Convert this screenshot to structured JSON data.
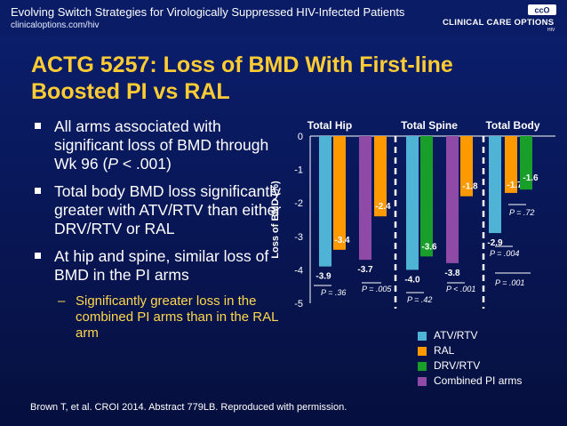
{
  "header": {
    "title": "Evolving Switch Strategies for Virologically Suppressed HIV-Infected Patients",
    "url": "clinicaloptions.com/hiv",
    "logo_text": "CLINICAL CARE OPTIONS",
    "logo_sub": "HIV",
    "logo_mark": "ccO"
  },
  "slide": {
    "title_line1": "ACTG 5257: Loss of BMD With First-line",
    "title_line2": "Boosted PI vs RAL"
  },
  "bullets": [
    {
      "pre": "All arms associated with significant loss of BMD through Wk 96 (",
      "em": "P",
      "post": " < .001)"
    },
    {
      "pre": "Total body BMD loss significantly greater with ATV/RTV than either DRV/RTV or RAL",
      "em": "",
      "post": ""
    },
    {
      "pre": "At hip and spine, similar loss of BMD in the PI arms",
      "em": "",
      "post": ""
    }
  ],
  "sub_bullet": "Significantly greater loss in the combined PI arms than in the RAL arm",
  "sub_dash": "–",
  "citation": "Brown T, et al. CROI 2014. Abstract 779LB. Reproduced with permission.",
  "colors": {
    "ATV/RTV": "#4fb3d6",
    "RAL": "#ff9900",
    "DRV/RTV": "#1a9e2a",
    "Combined PI arms": "#8e4aa6",
    "title": "#ffcc33"
  },
  "chart_data": {
    "type": "bar",
    "ylabel": "Loss of BMD (%)",
    "ylim": [
      -5,
      0
    ],
    "yticks": [
      0,
      -1,
      -2,
      -3,
      -4,
      -5
    ],
    "groups": [
      {
        "name": "Total Hip",
        "bars": [
          {
            "series": "ATV/RTV",
            "value": -3.9,
            "label": "-3.9"
          },
          {
            "series": "RAL",
            "value": -3.4,
            "label": "-3.4"
          },
          {
            "series": "Combined PI arms",
            "value": -3.7,
            "label": "-3.7"
          },
          {
            "series": "RAL",
            "value": -2.4,
            "label": "-2.4"
          }
        ],
        "pvalues": [
          "P = .36",
          "P = .005"
        ]
      },
      {
        "name": "Total Spine",
        "bars": [
          {
            "series": "ATV/RTV",
            "value": -4.0,
            "label": "-4.0"
          },
          {
            "series": "DRV/RTV",
            "value": -3.6,
            "label": "-3.6"
          },
          {
            "series": "Combined PI arms",
            "value": -3.8,
            "label": "-3.8"
          },
          {
            "series": "RAL",
            "value": -1.8,
            "label": "-1.8"
          }
        ],
        "pvalues": [
          "P = .42",
          "P < .001"
        ]
      },
      {
        "name": "Total Body",
        "bars": [
          {
            "series": "ATV/RTV",
            "value": -2.9,
            "label": "-2.9"
          },
          {
            "series": "RAL",
            "value": -1.7,
            "label": "-1.7"
          },
          {
            "series": "DRV/RTV",
            "value": -1.6,
            "label": "-1.6"
          }
        ],
        "pvalues": [
          "P = .72",
          "P = .004",
          "P = .001"
        ]
      }
    ],
    "legend": [
      "ATV/RTV",
      "RAL",
      "DRV/RTV",
      "Combined PI arms"
    ],
    "legend_position": "bottom-right"
  }
}
